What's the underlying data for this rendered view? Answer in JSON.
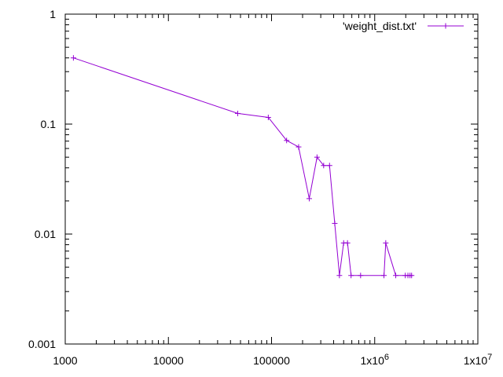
{
  "chart_data": {
    "type": "line",
    "x_scale": "log",
    "y_scale": "log",
    "xlim": [
      1000,
      10000000
    ],
    "ylim": [
      0.001,
      1
    ],
    "grid": false,
    "legend_position": "top-right",
    "x_ticks": [
      {
        "value": 1000,
        "label": "1000"
      },
      {
        "value": 10000,
        "label": "10000"
      },
      {
        "value": 100000,
        "label": "100000"
      },
      {
        "value": 1000000,
        "label": "1x10",
        "exp": "6"
      },
      {
        "value": 10000000,
        "label": "1x10",
        "exp": "7"
      }
    ],
    "y_ticks": [
      {
        "value": 0.001,
        "label": "0.001"
      },
      {
        "value": 0.01,
        "label": "0.01"
      },
      {
        "value": 0.1,
        "label": "0.1"
      },
      {
        "value": 1,
        "label": "1"
      }
    ],
    "series": [
      {
        "name": "'weight_dist.txt'",
        "color": "#9400d3",
        "marker": "plus",
        "points": [
          [
            1200,
            0.4
          ],
          [
            47000,
            0.125
          ],
          [
            93000,
            0.115
          ],
          [
            140000,
            0.071
          ],
          [
            183000,
            0.062
          ],
          [
            232000,
            0.021
          ],
          [
            276000,
            0.05
          ],
          [
            320000,
            0.042
          ],
          [
            365000,
            0.042
          ],
          [
            410000,
            0.0125
          ],
          [
            455000,
            0.0042
          ],
          [
            500000,
            0.0083
          ],
          [
            545000,
            0.0083
          ],
          [
            590000,
            0.0042
          ],
          [
            730000,
            0.0042
          ],
          [
            1230000,
            0.0042
          ],
          [
            1280000,
            0.0083
          ],
          [
            1600000,
            0.0042
          ],
          [
            1980000,
            0.0042
          ],
          [
            2100000,
            0.0042
          ],
          [
            2200000,
            0.0042
          ],
          [
            2280000,
            0.0042
          ]
        ]
      }
    ]
  }
}
